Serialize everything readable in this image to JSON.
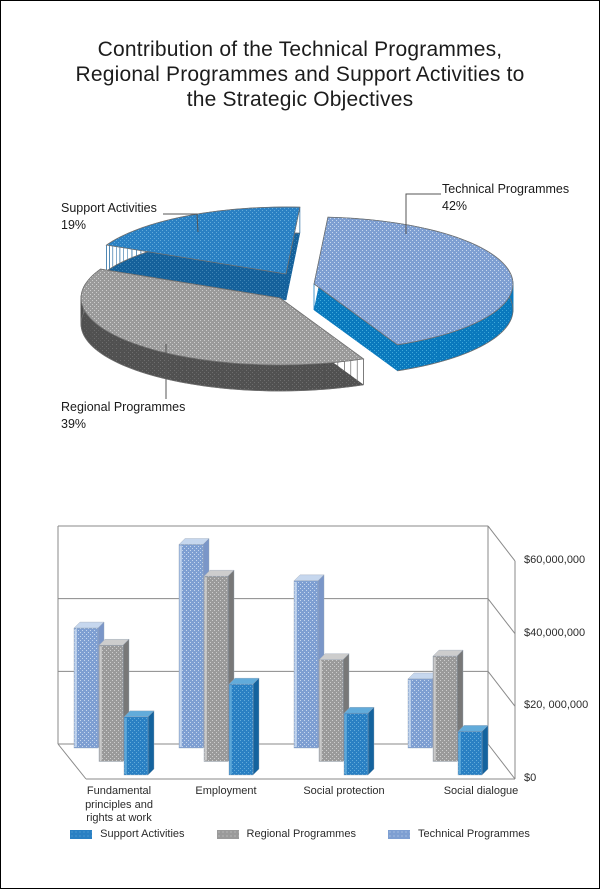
{
  "page": {
    "title": "Contribution of the Technical Programmes,\nRegional Programmes and Support Activities to\nthe Strategic Objectives"
  },
  "colors": {
    "technical": {
      "base": "#7e9fd2",
      "light": "#c6d7ee",
      "side": "#0a79bd",
      "side_light": "#3fa9da",
      "bar_side": "#7a96c8"
    },
    "regional": {
      "base": "#9a9a9a",
      "light": "#cdcdcd",
      "side": "#515151",
      "side_light": "#6e6e6e",
      "bar_side": "#787878"
    },
    "support": {
      "base": "#2a80c3",
      "light": "#62abda",
      "side": "#15619b",
      "side_light": "#3f85b5",
      "bar_side": "#14639e"
    }
  },
  "chart_data": [
    {
      "type": "pie",
      "slices": [
        {
          "key": "technical",
          "label": "Technical Programmes",
          "pct": 42,
          "pct_label": "42%"
        },
        {
          "key": "regional",
          "label": "Regional Programmes",
          "pct": 39,
          "pct_label": "39%"
        },
        {
          "key": "support",
          "label": "Support Activities",
          "pct": 19,
          "pct_label": "19%"
        }
      ]
    },
    {
      "type": "bar",
      "categories": [
        "Fundamental\nprinciples and\nrights at work",
        "Employment",
        "Social protection",
        "Social dialogue"
      ],
      "series": [
        {
          "name": "Technical Programmes",
          "key": "technical",
          "values": [
            33000000,
            56000000,
            46000000,
            19000000
          ]
        },
        {
          "name": "Regional Programmes",
          "key": "regional",
          "values": [
            32000000,
            51000000,
            28000000,
            29000000
          ]
        },
        {
          "name": "Support Activities",
          "key": "support",
          "values": [
            16000000,
            25000000,
            17000000,
            12000000
          ]
        }
      ],
      "ylim": [
        0,
        60000000
      ],
      "ticks": [
        "$0",
        "$20, 000,000",
        "$40,000,000",
        "$60,000,000"
      ],
      "grid": true,
      "legend_position": "bottom",
      "legend_items": [
        {
          "key": "support",
          "label": "Support Activities"
        },
        {
          "key": "regional",
          "label": "Regional Programmes"
        },
        {
          "key": "technical",
          "label": "Technical Programmes"
        }
      ]
    }
  ]
}
